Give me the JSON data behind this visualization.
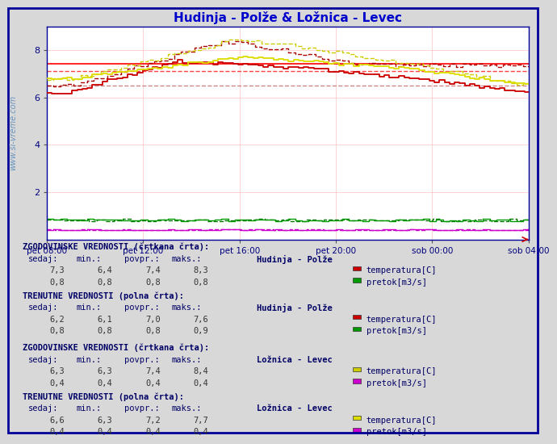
{
  "title": "Hudinja - Polže & Ložnica - Levec",
  "title_color": "#0000cc",
  "bg_color": "#d8d8d8",
  "plot_bg_color": "#ffffff",
  "x_label_color": "#000080",
  "y_label_color": "#000080",
  "grid_color_v": "#ffaaaa",
  "grid_color_h": "#ffcccc",
  "watermark": "www.si-vreme.com",
  "xlabel_ticks": [
    "pet 08:00",
    "pet 12:00",
    "pet 16:00",
    "pet 20:00",
    "sob 00:00",
    "sob 04:00"
  ],
  "ylim": [
    0,
    9
  ],
  "yticks": [
    2,
    4,
    6,
    8
  ],
  "n_points": 288,
  "temp_hist_hp_color": "#aa0000",
  "temp_curr_hp_color": "#cc0000",
  "flow_hist_hp_color": "#007700",
  "flow_curr_hp_color": "#009900",
  "temp_hist_ll_color": "#cccc00",
  "temp_curr_ll_color": "#dddd00",
  "flow_hist_ll_color": "#cc00cc",
  "flow_curr_ll_color": "#cc00cc",
  "hline1_color": "#ff0000",
  "hline2_color": "#ff4444",
  "hline3_color": "#cc8888",
  "hlines": [
    7.4,
    7.1,
    6.5
  ],
  "legend_label_hp": "Hudinja - Polže",
  "legend_label_ll": "Ložnica - Levec",
  "legend_temp": "temperatura[C]",
  "legend_flow": "pretok[m3/s]",
  "table_header1": "ZGODOVINSKE VREDNOSTI (črtkana črta):",
  "table_header2": "TRENUTNE VREDNOSTI (polna črta):",
  "border_color": "#000099",
  "icon_hp_temp_hist": "#cc0000",
  "icon_hp_flow_hist": "#009900",
  "icon_ll_temp_hist": "#cccc00",
  "icon_ll_flow_hist": "#cc00cc",
  "icon_hp_temp_curr": "#cc0000",
  "icon_hp_flow_curr": "#009900",
  "icon_ll_temp_curr": "#dddd00",
  "icon_ll_flow_curr": "#cc00cc"
}
